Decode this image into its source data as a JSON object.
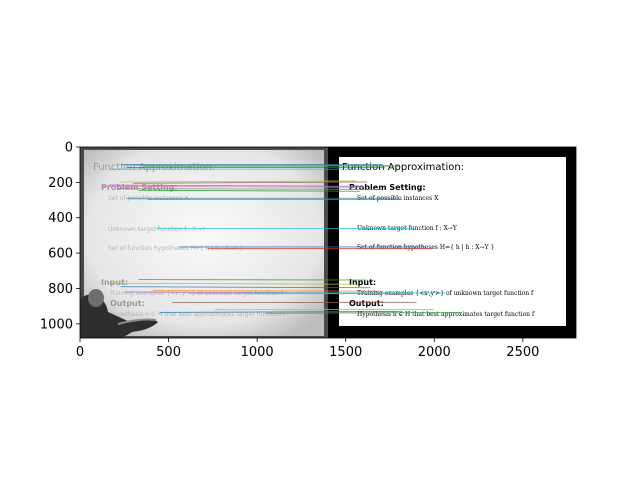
{
  "chart_data": {
    "type": "image-feature-matches",
    "title": "",
    "xlabel": "",
    "ylabel": "",
    "xlim": [
      0,
      2800
    ],
    "ylim": [
      1080,
      0
    ],
    "x_ticks": [
      0,
      500,
      1000,
      1500,
      2000,
      2500
    ],
    "y_ticks": [
      0,
      200,
      400,
      600,
      800,
      1000
    ],
    "image_extent": [
      0,
      2800,
      1080,
      0
    ],
    "split_x": 1400,
    "left_image": {
      "title": "Function Approximation:",
      "headers": [
        "Problem Setting:",
        "Input:",
        "Output:"
      ],
      "items": [
        "Set of possible instances X",
        "Unknown target function f : X→Y",
        "Set of function hypotheses H={ h | h : X→Y }",
        "Training examples {<xⁱ,yⁱ>} of unknown target function f",
        "Hypothesis h ∈ H that best approximates target function f"
      ]
    },
    "right_image": {
      "title": "Function Approximation:",
      "headers": [
        "Problem Setting:",
        "Input:",
        "Output:"
      ],
      "items": [
        "Set of possible instances X",
        "Unknown target function f : X→Y",
        "Set of function hypotheses H={ h | h : X→Y }",
        "Training examples {<xⁱ,yⁱ>} of unknown target function f",
        "Hypothesis h ∈ H that best approximates target function f"
      ]
    },
    "match_lines": [
      {
        "x1": 230,
        "y1": 100,
        "x2": 1700,
        "y2": 100,
        "color": "#1f77b4"
      },
      {
        "x1": 300,
        "y1": 105,
        "x2": 1750,
        "y2": 105,
        "color": "#ff7f0e"
      },
      {
        "x1": 360,
        "y1": 108,
        "x2": 1800,
        "y2": 108,
        "color": "#2ca02c"
      },
      {
        "x1": 260,
        "y1": 115,
        "x2": 1720,
        "y2": 115,
        "color": "#d62728"
      },
      {
        "x1": 170,
        "y1": 125,
        "x2": 1620,
        "y2": 125,
        "color": "#17becf"
      },
      {
        "x1": 230,
        "y1": 198,
        "x2": 1560,
        "y2": 192,
        "color": "#bcbd22"
      },
      {
        "x1": 300,
        "y1": 205,
        "x2": 1620,
        "y2": 198,
        "color": "#8c564b"
      },
      {
        "x1": 160,
        "y1": 215,
        "x2": 1600,
        "y2": 222,
        "color": "#9467bd"
      },
      {
        "x1": 120,
        "y1": 222,
        "x2": 1590,
        "y2": 228,
        "color": "#e377c2"
      },
      {
        "x1": 210,
        "y1": 235,
        "x2": 1700,
        "y2": 240,
        "color": "#7f7f7f"
      },
      {
        "x1": 330,
        "y1": 245,
        "x2": 1580,
        "y2": 250,
        "color": "#2ca02c"
      },
      {
        "x1": 260,
        "y1": 290,
        "x2": 1780,
        "y2": 290,
        "color": "#1f77b4"
      },
      {
        "x1": 380,
        "y1": 296,
        "x2": 1820,
        "y2": 296,
        "color": "#9467bd"
      },
      {
        "x1": 430,
        "y1": 460,
        "x2": 1880,
        "y2": 460,
        "color": "#17becf"
      },
      {
        "x1": 560,
        "y1": 565,
        "x2": 1950,
        "y2": 565,
        "color": "#1f77b4"
      },
      {
        "x1": 720,
        "y1": 575,
        "x2": 1990,
        "y2": 575,
        "color": "#d62728"
      },
      {
        "x1": 330,
        "y1": 750,
        "x2": 1620,
        "y2": 752,
        "color": "#2ca02c"
      },
      {
        "x1": 160,
        "y1": 770,
        "x2": 1570,
        "y2": 776,
        "color": "#bcbd22"
      },
      {
        "x1": 230,
        "y1": 790,
        "x2": 1640,
        "y2": 796,
        "color": "#1f77b4"
      },
      {
        "x1": 410,
        "y1": 812,
        "x2": 1700,
        "y2": 815,
        "color": "#ff7f0e"
      },
      {
        "x1": 250,
        "y1": 820,
        "x2": 1620,
        "y2": 826,
        "color": "#9467bd"
      },
      {
        "x1": 620,
        "y1": 830,
        "x2": 1880,
        "y2": 830,
        "color": "#e377c2"
      },
      {
        "x1": 950,
        "y1": 825,
        "x2": 2060,
        "y2": 825,
        "color": "#17becf"
      },
      {
        "x1": 520,
        "y1": 880,
        "x2": 1900,
        "y2": 878,
        "color": "#8c564b"
      },
      {
        "x1": 760,
        "y1": 920,
        "x2": 2000,
        "y2": 918,
        "color": "#bcbd22"
      },
      {
        "x1": 450,
        "y1": 935,
        "x2": 1820,
        "y2": 930,
        "color": "#1f77b4"
      },
      {
        "x1": 1050,
        "y1": 940,
        "x2": 2150,
        "y2": 936,
        "color": "#2ca02c"
      }
    ]
  }
}
